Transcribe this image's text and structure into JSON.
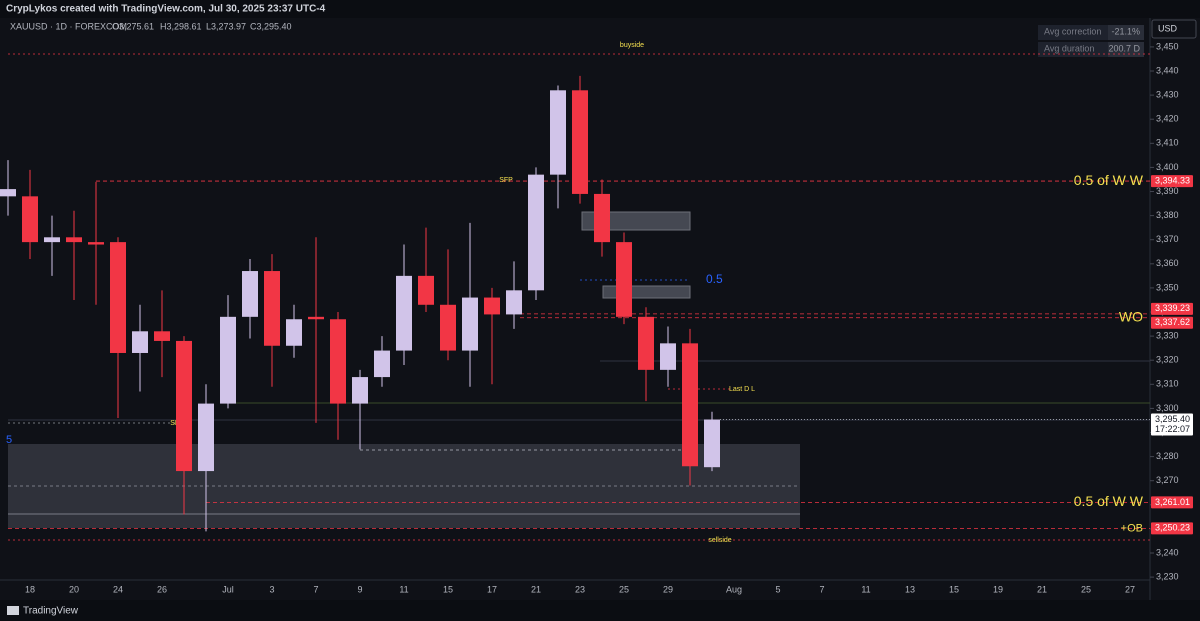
{
  "header": {
    "credit": "CrypLykos created with TradingView.com, Jul 30, 2025 23:37 UTC-4",
    "symbol": "XAUUSD · 1D · FOREXCOM",
    "ohlc": [
      "O3,275.61",
      "H3,298.61",
      "L3,273.97",
      "C3,295.40"
    ]
  },
  "stats": [
    {
      "label": "Avg correction",
      "value": "-21.1%"
    },
    {
      "label": "Avg duration",
      "value": "200.7 D"
    }
  ],
  "currency": "USD",
  "footer": "TradingView",
  "annotations": [
    "buyside",
    "SFP",
    "SFP",
    "sellside",
    "Last D L",
    "0.5",
    "5"
  ],
  "chart_data": {
    "type": "candlestick",
    "categories": [
      null,
      "18",
      null,
      "20",
      null,
      "24",
      null,
      "26",
      null,
      null,
      "Jul",
      null,
      "3",
      null,
      "7",
      null,
      "9",
      null,
      "11",
      null,
      "15",
      null,
      "17",
      null,
      "21",
      null,
      "23",
      null,
      "25",
      null,
      "29",
      null,
      null,
      "Aug",
      null,
      "5",
      null,
      "7",
      null,
      "11",
      null,
      "13",
      null,
      "15",
      null,
      "19",
      null,
      "21",
      null,
      "25",
      null,
      "27"
    ],
    "open": [
      3388,
      3388,
      3369,
      3371,
      3369,
      3369,
      3323,
      3332,
      3328,
      3274,
      3302,
      3338,
      3357,
      3326,
      3338,
      3337,
      3302,
      3313,
      3324,
      3355,
      3343,
      3324,
      3346,
      3339,
      3349,
      3397,
      3432,
      3389,
      3369,
      3338,
      3316,
      3327,
      3275.61,
      null,
      null,
      null,
      null,
      null,
      null,
      null,
      null,
      null,
      null,
      null,
      null,
      null,
      null,
      null,
      null,
      null,
      null,
      null
    ],
    "high": [
      3403,
      3399,
      3380,
      3382,
      3394,
      3371,
      3343,
      3349,
      3330,
      3310,
      3347,
      3362,
      3364,
      3343,
      3371,
      3340,
      3316,
      3330,
      3368,
      3375,
      3366,
      3377,
      3350,
      3361,
      3400,
      3434,
      3438,
      3395,
      3373,
      3342,
      3334,
      3333,
      3298.61,
      null,
      null,
      null,
      null,
      null,
      null,
      null,
      null,
      null,
      null,
      null,
      null,
      null,
      null,
      null,
      null,
      null,
      null,
      null
    ],
    "low": [
      3380,
      3362,
      3355,
      3345,
      3343,
      3296,
      3307,
      3313,
      3256,
      3249,
      3300,
      3329,
      3309,
      3321,
      3294,
      3287,
      3283,
      3309,
      3318,
      3340,
      3320,
      3309,
      3310,
      3333,
      3345,
      3383,
      3385,
      3363,
      3335,
      3303,
      3309,
      3268,
      3273.97,
      null,
      null,
      null,
      null,
      null,
      null,
      null,
      null,
      null,
      null,
      null,
      null,
      null,
      null,
      null,
      null,
      null,
      null,
      null
    ],
    "close": [
      3391,
      3369,
      3371,
      3369,
      3368,
      3323,
      3332,
      3328,
      3274,
      3302,
      3338,
      3357,
      3326,
      3337,
      3337,
      3302,
      3313,
      3324,
      3355,
      3343,
      3324,
      3346,
      3339,
      3349,
      3397,
      3432,
      3389,
      3369,
      3338,
      3316,
      3327,
      3276,
      3295.4,
      null,
      null,
      null,
      null,
      null,
      null,
      null,
      null,
      null,
      null,
      null,
      null,
      null,
      null,
      null,
      null,
      null,
      null,
      null
    ],
    "up_color": "#d1c4e9",
    "down_color": "#f23645",
    "ylim": [
      3228.8,
      3462
    ],
    "yticks": [
      {
        "value": 3230,
        "label": "3,230"
      },
      {
        "value": 3240,
        "label": "3,240"
      },
      {
        "value": 3250,
        "label": "3,250"
      },
      {
        "value": 3260,
        "label": "3,260"
      },
      {
        "value": 3270,
        "label": "3,270"
      },
      {
        "value": 3280,
        "label": "3,280"
      },
      {
        "value": 3290,
        "label": "3,290"
      },
      {
        "value": 3300,
        "label": "3,300"
      },
      {
        "value": 3310,
        "label": "3,310"
      },
      {
        "value": 3320,
        "label": "3,320"
      },
      {
        "value": 3330,
        "label": "3,330"
      },
      {
        "value": 3340,
        "label": "3,340"
      },
      {
        "value": 3350,
        "label": "3,350"
      },
      {
        "value": 3360,
        "label": "3,360"
      },
      {
        "value": 3370,
        "label": "3,370"
      },
      {
        "value": 3380,
        "label": "3,380"
      },
      {
        "value": 3390,
        "label": "3,390"
      },
      {
        "value": 3400,
        "label": "3,400"
      },
      {
        "value": 3410,
        "label": "3,410"
      },
      {
        "value": 3420,
        "label": "3,420"
      },
      {
        "value": 3430,
        "label": "3,430"
      },
      {
        "value": 3440,
        "label": "3,440"
      },
      {
        "value": 3450,
        "label": "3,450"
      }
    ],
    "levels": [
      {
        "value": 3394.33,
        "label": "3,394.33",
        "text": "0.5 of W W",
        "color": "#f23645"
      },
      {
        "value": 3339.23,
        "label": "3,339.23",
        "color": "#f23645"
      },
      {
        "value": 3337.62,
        "label": "3,337.62",
        "text": "WO",
        "color": "#f23645"
      },
      {
        "value": 3261.01,
        "label": "3,261.01",
        "text": "0.5 of W W",
        "color": "#f23645"
      },
      {
        "value": 3250.23,
        "label": "3,250.23",
        "text": "+OB",
        "color": "#f23645"
      }
    ],
    "last_price": {
      "value": 3295.4,
      "label": "3,295.40",
      "countdown": "17:22:07"
    }
  }
}
